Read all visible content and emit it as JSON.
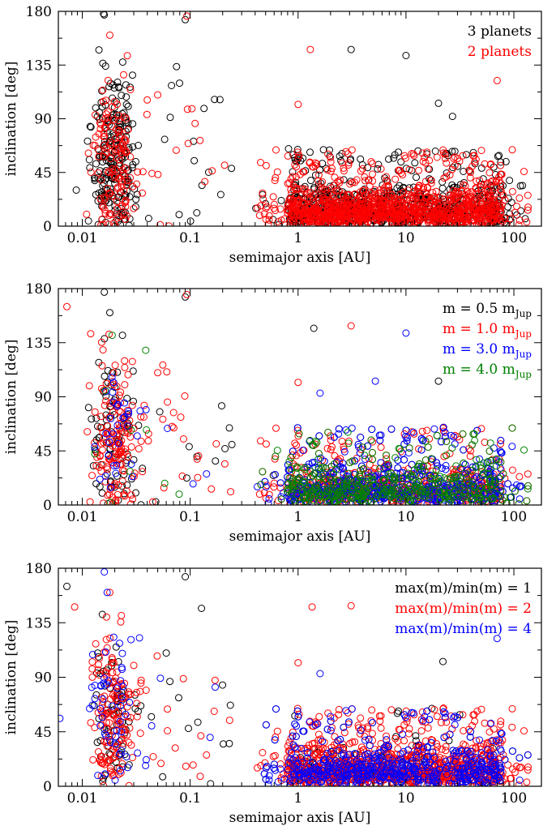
{
  "figure": {
    "description_colors": {
      "black": "#000000",
      "red": "#ff0000",
      "blue": "#0000ff",
      "green": "#008000"
    }
  },
  "chart_data": [
    {
      "type": "scatter",
      "id": "panel-1",
      "xlabel": "semimajor axis  [AU]",
      "ylabel": "inclination  [deg]",
      "xscale": "log",
      "xlim": [
        0.006,
        180
      ],
      "ylim": [
        0,
        180
      ],
      "xticks": [
        {
          "v": 0.01,
          "label": "0.01"
        },
        {
          "v": 0.1,
          "label": "0.1"
        },
        {
          "v": 1,
          "label": "1"
        },
        {
          "v": 10,
          "label": "10"
        },
        {
          "v": 100,
          "label": "100"
        }
      ],
      "yticks": [
        {
          "v": 0,
          "label": "0"
        },
        {
          "v": 45,
          "label": "45"
        },
        {
          "v": 90,
          "label": "90"
        },
        {
          "v": 135,
          "label": "135"
        },
        {
          "v": 180,
          "label": "180"
        }
      ],
      "legend_position": "top-right",
      "series": [
        {
          "name": "3 planets",
          "label_main": "3 planets",
          "color": "#000000",
          "count_inner": 230,
          "count_outer": 700,
          "extra": [
            [
              0.016,
              177
            ],
            [
              3.1,
              148
            ],
            [
              10,
              143
            ],
            [
              8.5,
              62
            ],
            [
              20,
              103
            ],
            [
              27,
              92
            ],
            [
              0.09,
              173
            ]
          ]
        },
        {
          "name": "2 planets",
          "label_main": "2 planets",
          "color": "#ff0000",
          "count_inner": 150,
          "count_outer": 1100,
          "extra": [
            [
              0.093,
              176
            ],
            [
              1.3,
              148
            ],
            [
              0.018,
              160
            ],
            [
              70,
              122
            ],
            [
              0.05,
              110
            ],
            [
              1.0,
              102
            ]
          ]
        }
      ]
    },
    {
      "type": "scatter",
      "id": "panel-2",
      "xlabel": "semimajor axis  [AU]",
      "ylabel": "inclination  [deg]",
      "xscale": "log",
      "xlim": [
        0.006,
        180
      ],
      "ylim": [
        0,
        180
      ],
      "xticks": [
        {
          "v": 0.01,
          "label": "0.01"
        },
        {
          "v": 0.1,
          "label": "0.1"
        },
        {
          "v": 1,
          "label": "1"
        },
        {
          "v": 10,
          "label": "10"
        },
        {
          "v": 100,
          "label": "100"
        }
      ],
      "yticks": [
        {
          "v": 0,
          "label": "0"
        },
        {
          "v": 45,
          "label": "45"
        },
        {
          "v": 90,
          "label": "90"
        },
        {
          "v": 135,
          "label": "135"
        },
        {
          "v": 180,
          "label": "180"
        }
      ],
      "legend_position": "top-right",
      "series": [
        {
          "name": "m = 0.5 mJup",
          "label_main": "m = 0.5 m",
          "label_sub": "Jup",
          "color": "#000000",
          "count_inner": 90,
          "count_outer": 350,
          "extra": [
            [
              0.016,
              177
            ],
            [
              1.4,
              147
            ],
            [
              0.09,
              173
            ],
            [
              20,
              103
            ],
            [
              0.018,
              160
            ]
          ]
        },
        {
          "name": "m = 1.0 mJup",
          "label_main": "m = 1.0 m",
          "label_sub": "Jup",
          "color": "#ff0000",
          "count_inner": 170,
          "count_outer": 700,
          "extra": [
            [
              0.093,
              175
            ],
            [
              3.1,
              149
            ],
            [
              0.0072,
              165
            ],
            [
              1.0,
              102
            ],
            [
              0.05,
              110
            ]
          ]
        },
        {
          "name": "m = 3.0 mJup",
          "label_main": "m = 3.0 m",
          "label_sub": "Jup",
          "color": "#0000ff",
          "count_inner": 35,
          "count_outer": 500,
          "extra": [
            [
              10,
              143
            ],
            [
              5.2,
              103
            ],
            [
              1.6,
              93
            ]
          ]
        },
        {
          "name": "m = 4.0 mJup",
          "label_main": "m = 4.0 m",
          "label_sub": "Jup",
          "color": "#008000",
          "count_inner": 8,
          "count_outer": 420,
          "extra": [
            [
              0.058,
              18
            ],
            [
              0.079,
              9
            ]
          ]
        }
      ]
    },
    {
      "type": "scatter",
      "id": "panel-3",
      "xlabel": "semimajor axis  [AU]",
      "ylabel": "inclination  [deg]",
      "xscale": "log",
      "xlim": [
        0.006,
        180
      ],
      "ylim": [
        0,
        180
      ],
      "xticks": [
        {
          "v": 0.01,
          "label": "0.01"
        },
        {
          "v": 0.1,
          "label": "0.1"
        },
        {
          "v": 1,
          "label": "1"
        },
        {
          "v": 10,
          "label": "10"
        },
        {
          "v": 100,
          "label": "100"
        }
      ],
      "yticks": [
        {
          "v": 0,
          "label": "0"
        },
        {
          "v": 45,
          "label": "45"
        },
        {
          "v": 90,
          "label": "90"
        },
        {
          "v": 135,
          "label": "135"
        },
        {
          "v": 180,
          "label": "180"
        }
      ],
      "legend_position": "top-right",
      "series": [
        {
          "name": "max(m)/min(m) = 1",
          "label_main": "max(m)/min(m) = 1",
          "color": "#000000",
          "count_inner": 80,
          "count_outer": 380,
          "extra": [
            [
              0.0072,
              165
            ],
            [
              0.09,
              173
            ],
            [
              0.06,
              110
            ],
            [
              8.5,
              62
            ],
            [
              22,
              103
            ]
          ]
        },
        {
          "name": "max(m)/min(m) = 2",
          "label_main": "max(m)/min(m) = 2",
          "color": "#ff0000",
          "count_inner": 160,
          "count_outer": 900,
          "extra": [
            [
              1.35,
              148
            ],
            [
              3.1,
              149
            ],
            [
              0.0085,
              148
            ],
            [
              0.018,
              160
            ],
            [
              1.0,
              102
            ]
          ]
        },
        {
          "name": "max(m)/min(m) = 4",
          "label_main": "max(m)/min(m) = 4",
          "color": "#0000ff",
          "count_inner": 55,
          "count_outer": 520,
          "extra": [
            [
              0.016,
              177
            ],
            [
              0.017,
              160
            ],
            [
              0.0062,
              56
            ],
            [
              70,
              122
            ],
            [
              1.6,
              93
            ]
          ]
        }
      ]
    }
  ]
}
